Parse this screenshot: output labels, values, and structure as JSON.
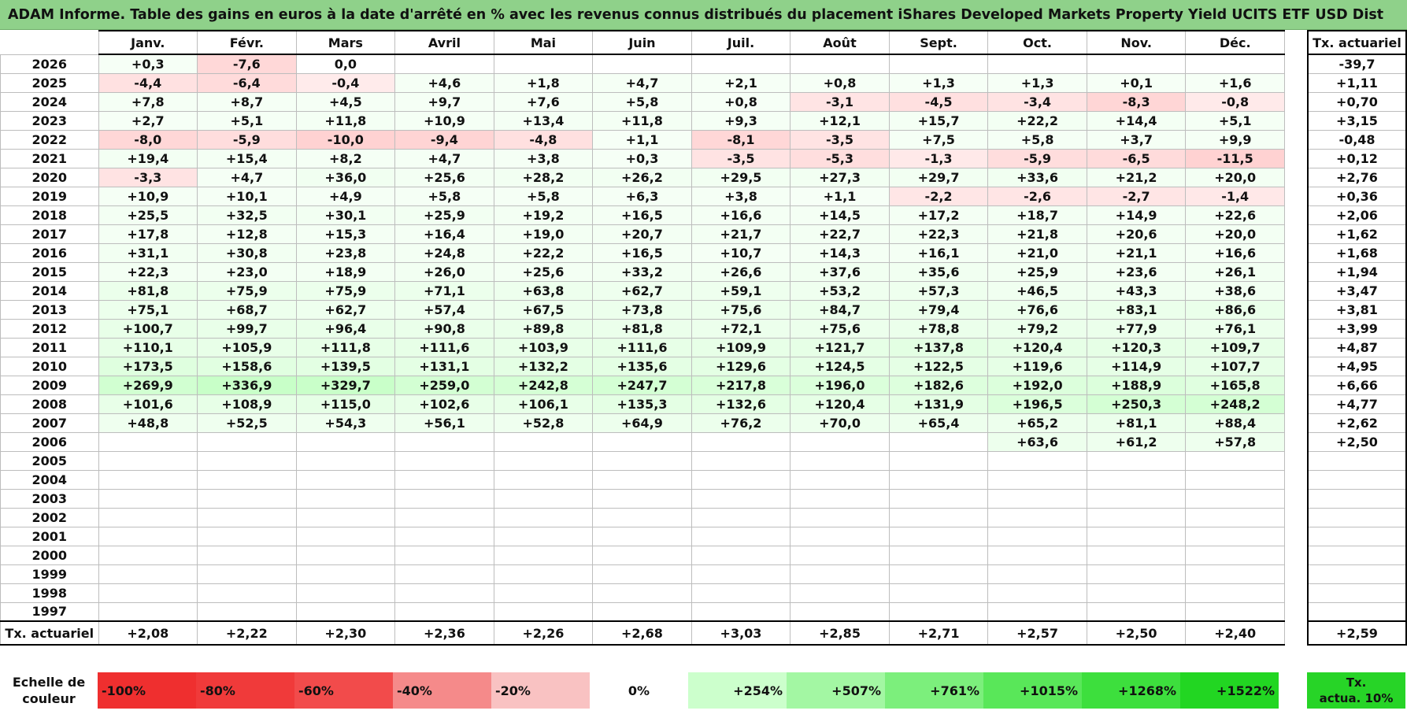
{
  "title": "ADAM Informe. Table des gains en euros à la date d'arrêté en % avec les revenus connus distribués du placement iShares Developed Markets Property Yield UCITS ETF USD Dist",
  "months": [
    "Janv.",
    "Févr.",
    "Mars",
    "Avril",
    "Mai",
    "Juin",
    "Juil.",
    "Août",
    "Sept.",
    "Oct.",
    "Nov.",
    "Déc."
  ],
  "annual_header": "Tx. actuariel",
  "rows": [
    {
      "year": "2026",
      "values": [
        "+0,3",
        "-7,6",
        "0,0",
        "",
        "",
        "",
        "",
        "",
        "",
        "",
        "",
        ""
      ],
      "annual": "-39,7"
    },
    {
      "year": "2025",
      "values": [
        "-4,4",
        "-6,4",
        "-0,4",
        "+4,6",
        "+1,8",
        "+4,7",
        "+2,1",
        "+0,8",
        "+1,3",
        "+1,3",
        "+0,1",
        "+1,6"
      ],
      "annual": "+1,11"
    },
    {
      "year": "2024",
      "values": [
        "+7,8",
        "+8,7",
        "+4,5",
        "+9,7",
        "+7,6",
        "+5,8",
        "+0,8",
        "-3,1",
        "-4,5",
        "-3,4",
        "-8,3",
        "-0,8"
      ],
      "annual": "+0,70"
    },
    {
      "year": "2023",
      "values": [
        "+2,7",
        "+5,1",
        "+11,8",
        "+10,9",
        "+13,4",
        "+11,8",
        "+9,3",
        "+12,1",
        "+15,7",
        "+22,2",
        "+14,4",
        "+5,1"
      ],
      "annual": "+3,15"
    },
    {
      "year": "2022",
      "values": [
        "-8,0",
        "-5,9",
        "-10,0",
        "-9,4",
        "-4,8",
        "+1,1",
        "-8,1",
        "-3,5",
        "+7,5",
        "+5,8",
        "+3,7",
        "+9,9"
      ],
      "annual": "-0,48"
    },
    {
      "year": "2021",
      "values": [
        "+19,4",
        "+15,4",
        "+8,2",
        "+4,7",
        "+3,8",
        "+0,3",
        "-3,5",
        "-5,3",
        "-1,3",
        "-5,9",
        "-6,5",
        "-11,5"
      ],
      "annual": "+0,12"
    },
    {
      "year": "2020",
      "values": [
        "-3,3",
        "+4,7",
        "+36,0",
        "+25,6",
        "+28,2",
        "+26,2",
        "+29,5",
        "+27,3",
        "+29,7",
        "+33,6",
        "+21,2",
        "+20,0"
      ],
      "annual": "+2,76"
    },
    {
      "year": "2019",
      "values": [
        "+10,9",
        "+10,1",
        "+4,9",
        "+5,8",
        "+5,8",
        "+6,3",
        "+3,8",
        "+1,1",
        "-2,2",
        "-2,6",
        "-2,7",
        "-1,4"
      ],
      "annual": "+0,36"
    },
    {
      "year": "2018",
      "values": [
        "+25,5",
        "+32,5",
        "+30,1",
        "+25,9",
        "+19,2",
        "+16,5",
        "+16,6",
        "+14,5",
        "+17,2",
        "+18,7",
        "+14,9",
        "+22,6"
      ],
      "annual": "+2,06"
    },
    {
      "year": "2017",
      "values": [
        "+17,8",
        "+12,8",
        "+15,3",
        "+16,4",
        "+19,0",
        "+20,7",
        "+21,7",
        "+22,7",
        "+22,3",
        "+21,8",
        "+20,6",
        "+20,0"
      ],
      "annual": "+1,62"
    },
    {
      "year": "2016",
      "values": [
        "+31,1",
        "+30,8",
        "+23,8",
        "+24,8",
        "+22,2",
        "+16,5",
        "+10,7",
        "+14,3",
        "+16,1",
        "+21,0",
        "+21,1",
        "+16,6"
      ],
      "annual": "+1,68"
    },
    {
      "year": "2015",
      "values": [
        "+22,3",
        "+23,0",
        "+18,9",
        "+26,0",
        "+25,6",
        "+33,2",
        "+26,6",
        "+37,6",
        "+35,6",
        "+25,9",
        "+23,6",
        "+26,1"
      ],
      "annual": "+1,94"
    },
    {
      "year": "2014",
      "values": [
        "+81,8",
        "+75,9",
        "+75,9",
        "+71,1",
        "+63,8",
        "+62,7",
        "+59,1",
        "+53,2",
        "+57,3",
        "+46,5",
        "+43,3",
        "+38,6"
      ],
      "annual": "+3,47"
    },
    {
      "year": "2013",
      "values": [
        "+75,1",
        "+68,7",
        "+62,7",
        "+57,4",
        "+67,5",
        "+73,8",
        "+75,6",
        "+84,7",
        "+79,4",
        "+76,6",
        "+83,1",
        "+86,6"
      ],
      "annual": "+3,81"
    },
    {
      "year": "2012",
      "values": [
        "+100,7",
        "+99,7",
        "+96,4",
        "+90,8",
        "+89,8",
        "+81,8",
        "+72,1",
        "+75,6",
        "+78,8",
        "+79,2",
        "+77,9",
        "+76,1"
      ],
      "annual": "+3,99"
    },
    {
      "year": "2011",
      "values": [
        "+110,1",
        "+105,9",
        "+111,8",
        "+111,6",
        "+103,9",
        "+111,6",
        "+109,9",
        "+121,7",
        "+137,8",
        "+120,4",
        "+120,3",
        "+109,7"
      ],
      "annual": "+4,87"
    },
    {
      "year": "2010",
      "values": [
        "+173,5",
        "+158,6",
        "+139,5",
        "+131,1",
        "+132,2",
        "+135,6",
        "+129,6",
        "+124,5",
        "+122,5",
        "+119,6",
        "+114,9",
        "+107,7"
      ],
      "annual": "+4,95"
    },
    {
      "year": "2009",
      "values": [
        "+269,9",
        "+336,9",
        "+329,7",
        "+259,0",
        "+242,8",
        "+247,7",
        "+217,8",
        "+196,0",
        "+182,6",
        "+192,0",
        "+188,9",
        "+165,8"
      ],
      "annual": "+6,66"
    },
    {
      "year": "2008",
      "values": [
        "+101,6",
        "+108,9",
        "+115,0",
        "+102,6",
        "+106,1",
        "+135,3",
        "+132,6",
        "+120,4",
        "+131,9",
        "+196,5",
        "+250,3",
        "+248,2"
      ],
      "annual": "+4,77"
    },
    {
      "year": "2007",
      "values": [
        "+48,8",
        "+52,5",
        "+54,3",
        "+56,1",
        "+52,8",
        "+64,9",
        "+76,2",
        "+70,0",
        "+65,4",
        "+65,2",
        "+81,1",
        "+88,4"
      ],
      "annual": "+2,62"
    },
    {
      "year": "2006",
      "values": [
        "",
        "",
        "",
        "",
        "",
        "",
        "",
        "",
        "",
        "+63,6",
        "+61,2",
        "+57,8"
      ],
      "annual": "+2,50"
    },
    {
      "year": "2005",
      "values": [
        "",
        "",
        "",
        "",
        "",
        "",
        "",
        "",
        "",
        "",
        "",
        ""
      ],
      "annual": ""
    },
    {
      "year": "2004",
      "values": [
        "",
        "",
        "",
        "",
        "",
        "",
        "",
        "",
        "",
        "",
        "",
        ""
      ],
      "annual": ""
    },
    {
      "year": "2003",
      "values": [
        "",
        "",
        "",
        "",
        "",
        "",
        "",
        "",
        "",
        "",
        "",
        ""
      ],
      "annual": ""
    },
    {
      "year": "2002",
      "values": [
        "",
        "",
        "",
        "",
        "",
        "",
        "",
        "",
        "",
        "",
        "",
        ""
      ],
      "annual": ""
    },
    {
      "year": "2001",
      "values": [
        "",
        "",
        "",
        "",
        "",
        "",
        "",
        "",
        "",
        "",
        "",
        ""
      ],
      "annual": ""
    },
    {
      "year": "2000",
      "values": [
        "",
        "",
        "",
        "",
        "",
        "",
        "",
        "",
        "",
        "",
        "",
        ""
      ],
      "annual": ""
    },
    {
      "year": "1999",
      "values": [
        "",
        "",
        "",
        "",
        "",
        "",
        "",
        "",
        "",
        "",
        "",
        ""
      ],
      "annual": ""
    },
    {
      "year": "1998",
      "values": [
        "",
        "",
        "",
        "",
        "",
        "",
        "",
        "",
        "",
        "",
        "",
        ""
      ],
      "annual": ""
    },
    {
      "year": "1997",
      "values": [
        "",
        "",
        "",
        "",
        "",
        "",
        "",
        "",
        "",
        "",
        "",
        ""
      ],
      "annual": ""
    }
  ],
  "summary": {
    "label": "Tx. actuariel",
    "values": [
      "+2,08",
      "+2,22",
      "+2,30",
      "+2,36",
      "+2,26",
      "+2,68",
      "+3,03",
      "+2,85",
      "+2,71",
      "+2,57",
      "+2,50",
      "+2,40"
    ],
    "annual": "+2,59"
  },
  "scale": {
    "label_line1": "Echelle de",
    "label_line2": "couleur",
    "steps": [
      {
        "label": "-100%",
        "color": "#ef2f2f",
        "kind": "neg"
      },
      {
        "label": "-80%",
        "color": "#f03a3a",
        "kind": "neg"
      },
      {
        "label": "-60%",
        "color": "#f24b4b",
        "kind": "neg"
      },
      {
        "label": "-40%",
        "color": "#f58a8a",
        "kind": "neg"
      },
      {
        "label": "-20%",
        "color": "#f9c2c2",
        "kind": "neg"
      },
      {
        "label": "0%",
        "color": "#ffffff",
        "kind": "zero"
      },
      {
        "label": "+254%",
        "color": "#ccffcc",
        "kind": "pos"
      },
      {
        "label": "+507%",
        "color": "#a3f7a3",
        "kind": "pos"
      },
      {
        "label": "+761%",
        "color": "#7cef7c",
        "kind": "pos"
      },
      {
        "label": "+1015%",
        "color": "#59e759",
        "kind": "pos"
      },
      {
        "label": "+1268%",
        "color": "#3ddf3d",
        "kind": "pos"
      },
      {
        "label": "+1522%",
        "color": "#22d622",
        "kind": "pos"
      }
    ],
    "tx_label_line1": "Tx.",
    "tx_label_line2": "actua. 10%",
    "tx_color": "#27d427"
  }
}
